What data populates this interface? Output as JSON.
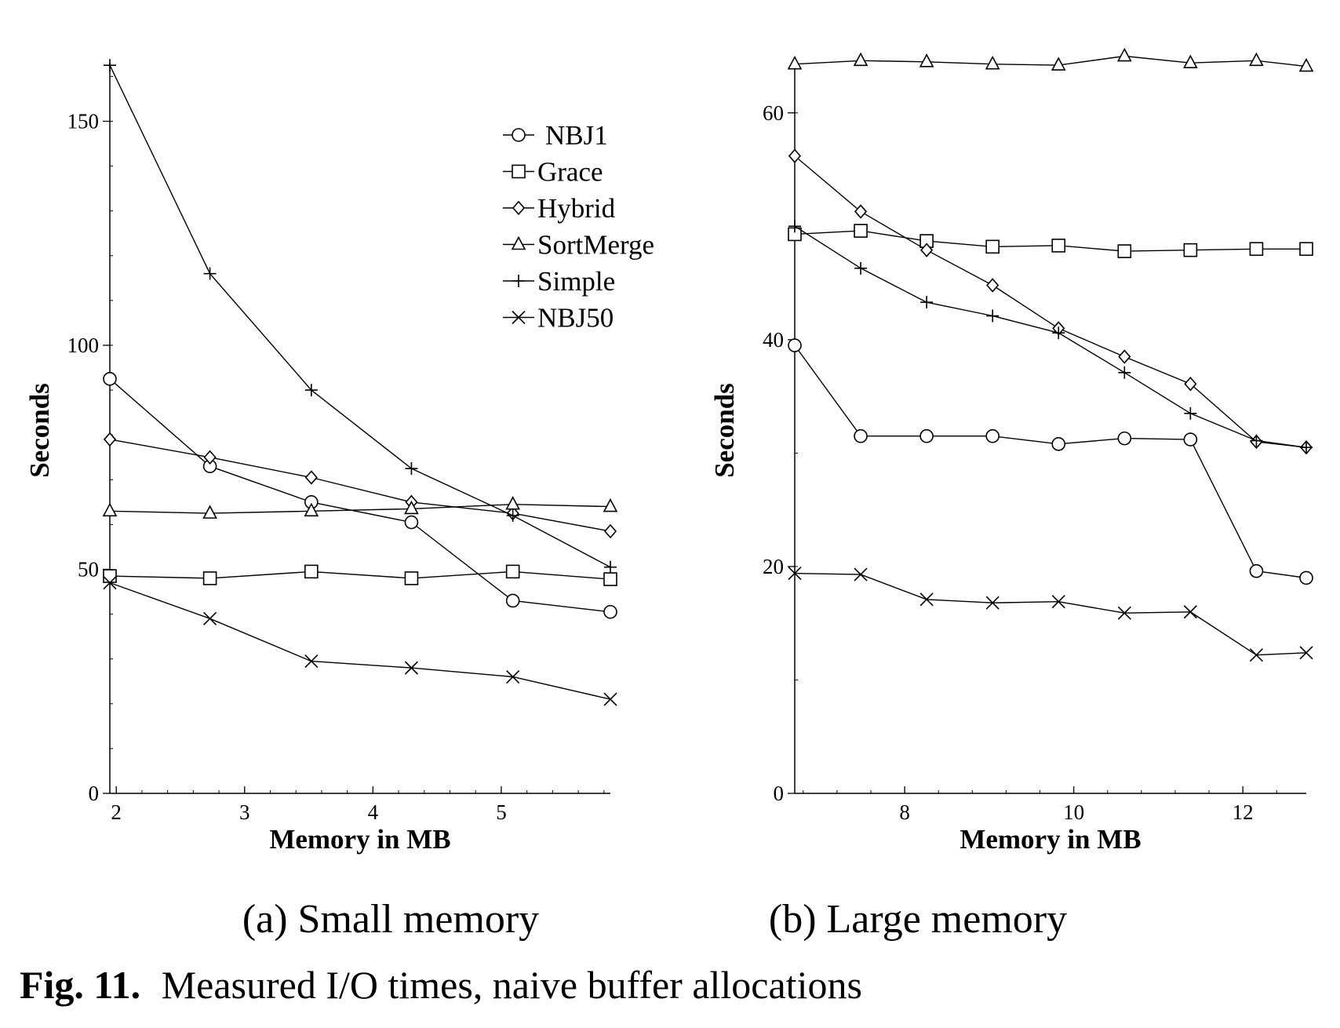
{
  "figure": {
    "label": "Fig. 11.",
    "title": "Measured I/O times, naive buffer allocations"
  },
  "chart_data": [
    {
      "type": "line",
      "caption": "(a) Small memory",
      "xlabel": "Memory in MB",
      "ylabel": "Seconds",
      "xlim": [
        1.95,
        5.85
      ],
      "ylim": [
        0,
        162
      ],
      "xticks": [
        2,
        3,
        4,
        5
      ],
      "yticks": [
        0,
        50,
        100,
        150
      ],
      "x_minor_step": 0.2,
      "y_minor_step": 10,
      "legend_position": "top-right",
      "series": [
        {
          "name": "NBJ1",
          "marker": "circle",
          "x": [
            1.95,
            2.73,
            3.52,
            4.3,
            5.09,
            5.85
          ],
          "y": [
            92.5,
            73,
            65,
            60.5,
            43,
            40.5
          ]
        },
        {
          "name": "Grace",
          "marker": "square",
          "x": [
            1.95,
            2.73,
            3.52,
            4.3,
            5.09,
            5.85
          ],
          "y": [
            48.5,
            48,
            49.5,
            48,
            49.5,
            47.8
          ]
        },
        {
          "name": "Hybrid",
          "marker": "diamond",
          "x": [
            1.95,
            2.73,
            3.52,
            4.3,
            5.09,
            5.85
          ],
          "y": [
            79,
            75,
            70.5,
            65,
            62.5,
            58.5
          ]
        },
        {
          "name": "SortMerge",
          "marker": "triangle",
          "x": [
            1.95,
            2.73,
            3.52,
            4.3,
            5.09,
            5.85
          ],
          "y": [
            63,
            62.5,
            63,
            63.5,
            64.5,
            64
          ]
        },
        {
          "name": "Simple",
          "marker": "plus",
          "x": [
            1.95,
            2.73,
            3.52,
            4.3,
            5.09,
            5.85
          ],
          "y": [
            162.5,
            116,
            90,
            72.5,
            62,
            50.5
          ]
        },
        {
          "name": "NBJ50",
          "marker": "x",
          "x": [
            1.95,
            2.73,
            3.52,
            4.3,
            5.09,
            5.85
          ],
          "y": [
            47,
            39,
            29.5,
            28,
            26,
            21
          ]
        }
      ]
    },
    {
      "type": "line",
      "caption": "(b) Large memory",
      "xlabel": "Memory in MB",
      "ylabel": "Seconds",
      "xlim": [
        6.7,
        12.75
      ],
      "ylim": [
        0,
        64
      ],
      "xticks": [
        8,
        10,
        12
      ],
      "yticks": [
        0,
        20,
        40,
        60
      ],
      "x_minor_step": 0.4,
      "y_minor_step": 10,
      "series": [
        {
          "name": "NBJ1",
          "marker": "circle",
          "x": [
            6.7,
            7.48,
            8.26,
            9.04,
            9.82,
            10.6,
            11.38,
            12.16,
            12.75
          ],
          "y": [
            39.5,
            31.5,
            31.5,
            31.5,
            30.8,
            31.3,
            31.2,
            19.6,
            19
          ]
        },
        {
          "name": "Grace",
          "marker": "square",
          "x": [
            6.7,
            7.48,
            8.26,
            9.04,
            9.82,
            10.6,
            11.38,
            12.16,
            12.75
          ],
          "y": [
            49.3,
            49.6,
            48.7,
            48.2,
            48.3,
            47.8,
            47.9,
            48,
            48
          ]
        },
        {
          "name": "Hybrid",
          "marker": "diamond",
          "x": [
            6.7,
            7.48,
            8.26,
            9.04,
            9.82,
            10.6,
            11.38,
            12.16,
            12.75
          ],
          "y": [
            56.2,
            51.3,
            47.9,
            44.8,
            41,
            38.5,
            36.1,
            31,
            30.5
          ]
        },
        {
          "name": "SortMerge",
          "marker": "triangle",
          "x": [
            6.7,
            7.48,
            8.26,
            9.04,
            9.82,
            10.6,
            11.38,
            12.16,
            12.75
          ],
          "y": [
            64.3,
            64.6,
            64.5,
            64.3,
            64.2,
            65,
            64.4,
            64.6,
            64.1
          ]
        },
        {
          "name": "Simple",
          "marker": "plus",
          "x": [
            6.7,
            7.48,
            8.26,
            9.04,
            9.82,
            10.6,
            11.38,
            12.16,
            12.75
          ],
          "y": [
            50,
            46.3,
            43.3,
            42.1,
            40.6,
            37.1,
            33.5,
            31.1,
            30.5
          ]
        },
        {
          "name": "NBJ50",
          "marker": "x",
          "x": [
            6.7,
            7.48,
            8.26,
            9.04,
            9.82,
            10.6,
            11.38,
            12.16,
            12.75
          ],
          "y": [
            19.4,
            19.3,
            17.1,
            16.8,
            16.9,
            15.9,
            16,
            12.2,
            12.4
          ]
        }
      ]
    }
  ]
}
